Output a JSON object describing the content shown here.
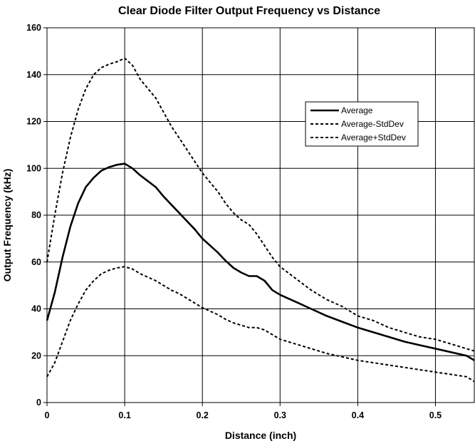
{
  "chart_data": {
    "type": "line",
    "title": "Clear Diode Filter Output Frequency vs Distance",
    "xlabel": "Distance (inch)",
    "ylabel": "Output Frequency (kHz)",
    "xlim": [
      0,
      0.55
    ],
    "ylim": [
      0,
      160
    ],
    "x_ticks": [
      0,
      0.1,
      0.2,
      0.3,
      0.4,
      0.5
    ],
    "x_tick_labels": [
      "0",
      "0.1",
      "0.2",
      "0.3",
      "0.4",
      "0.5"
    ],
    "y_ticks": [
      0,
      20,
      40,
      60,
      80,
      100,
      120,
      140,
      160
    ],
    "y_tick_labels": [
      "0",
      "20",
      "40",
      "60",
      "80",
      "100",
      "120",
      "140",
      "160"
    ],
    "grid": true,
    "legend_position": "top-right",
    "x": [
      0,
      0.01,
      0.02,
      0.03,
      0.04,
      0.05,
      0.06,
      0.07,
      0.08,
      0.09,
      0.1,
      0.11,
      0.12,
      0.13,
      0.14,
      0.15,
      0.16,
      0.17,
      0.18,
      0.19,
      0.2,
      0.21,
      0.22,
      0.23,
      0.24,
      0.25,
      0.26,
      0.27,
      0.28,
      0.29,
      0.3,
      0.32,
      0.34,
      0.36,
      0.38,
      0.4,
      0.42,
      0.44,
      0.46,
      0.48,
      0.5,
      0.52,
      0.54,
      0.55
    ],
    "series": [
      {
        "name": "Average",
        "style": "solid",
        "values": [
          35,
          47,
          62,
          75,
          85,
          92,
          96,
          99,
          100.5,
          101.5,
          102,
          100,
          97,
          94.5,
          92,
          88,
          84.5,
          81,
          77.5,
          74,
          70,
          67,
          64,
          60.5,
          57.5,
          55.5,
          54,
          54,
          52,
          48,
          46,
          43,
          40,
          37,
          34.5,
          32,
          30,
          28,
          26,
          24.5,
          23,
          21.5,
          20,
          18
        ]
      },
      {
        "name": "Average-StdDev",
        "style": "dashed",
        "values": [
          11,
          17,
          26,
          35,
          42,
          48,
          52,
          55,
          56.5,
          57.5,
          58,
          57,
          55,
          53.5,
          52,
          50,
          48,
          46.5,
          44.5,
          42.5,
          40.5,
          39,
          37.5,
          35.5,
          34,
          33,
          32,
          32,
          31,
          29,
          27,
          25,
          23,
          21,
          19.5,
          18,
          17,
          16,
          15,
          14,
          13,
          12,
          11,
          9
        ]
      },
      {
        "name": "Average+StdDev",
        "style": "dashed",
        "values": [
          60,
          80,
          98,
          113,
          125,
          134,
          140,
          143,
          144.5,
          145.5,
          147,
          144,
          138,
          134,
          130,
          124,
          118,
          113,
          108,
          103,
          98,
          94,
          90,
          85,
          81,
          78,
          76,
          72,
          67,
          62,
          58,
          53,
          48,
          44,
          41,
          37,
          35,
          32,
          30,
          28,
          27,
          25,
          23,
          22
        ]
      }
    ]
  }
}
